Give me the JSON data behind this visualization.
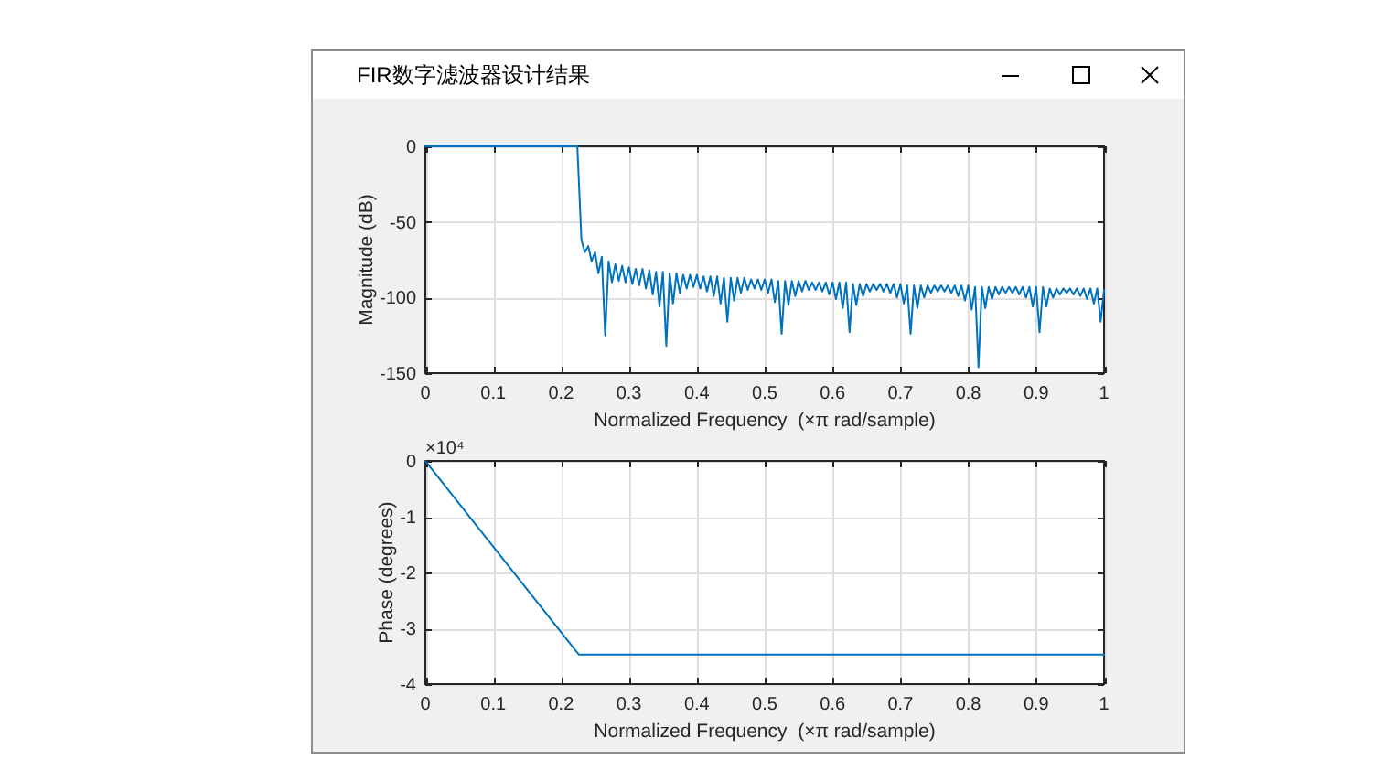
{
  "chart_data": [
    {
      "type": "line",
      "title": "FIR数字滤波器设计结果",
      "xlabel": "Normalized Frequency  (×π rad/sample)",
      "ylabel": "Magnitude (dB)",
      "xlim": [
        0,
        1
      ],
      "ylim": [
        -150,
        0
      ],
      "xticks": [
        0,
        0.1,
        0.2,
        0.3,
        0.4,
        0.5,
        0.6,
        0.7,
        0.8,
        0.9,
        1
      ],
      "yticks": [
        -150,
        -100,
        -50,
        0
      ],
      "grid": true,
      "series": [
        {
          "color": "#0072bd",
          "x": [
            0,
            0.224,
            0.23,
            0.235,
            0.24,
            0.245,
            0.25,
            0.255,
            0.26,
            0.265,
            0.27,
            0.275,
            0.28,
            0.285,
            0.29,
            0.295,
            0.3,
            0.305,
            0.31,
            0.315,
            0.32,
            0.325,
            0.33,
            0.335,
            0.34,
            0.345,
            0.35,
            0.355,
            0.36,
            0.365,
            0.37,
            0.375,
            0.38,
            0.385,
            0.39,
            0.395,
            0.4,
            0.405,
            0.41,
            0.415,
            0.42,
            0.425,
            0.43,
            0.435,
            0.44,
            0.445,
            0.45,
            0.455,
            0.46,
            0.465,
            0.47,
            0.475,
            0.48,
            0.485,
            0.49,
            0.495,
            0.5,
            0.505,
            0.51,
            0.515,
            0.52,
            0.525,
            0.53,
            0.535,
            0.54,
            0.545,
            0.55,
            0.555,
            0.56,
            0.565,
            0.57,
            0.575,
            0.58,
            0.585,
            0.59,
            0.595,
            0.6,
            0.605,
            0.61,
            0.615,
            0.62,
            0.625,
            0.63,
            0.635,
            0.64,
            0.645,
            0.65,
            0.655,
            0.66,
            0.665,
            0.67,
            0.675,
            0.68,
            0.685,
            0.69,
            0.695,
            0.7,
            0.705,
            0.71,
            0.715,
            0.72,
            0.725,
            0.73,
            0.735,
            0.74,
            0.745,
            0.75,
            0.755,
            0.76,
            0.765,
            0.77,
            0.775,
            0.78,
            0.785,
            0.79,
            0.795,
            0.8,
            0.805,
            0.81,
            0.815,
            0.82,
            0.825,
            0.83,
            0.835,
            0.84,
            0.845,
            0.85,
            0.855,
            0.86,
            0.865,
            0.87,
            0.875,
            0.88,
            0.885,
            0.89,
            0.895,
            0.9,
            0.905,
            0.91,
            0.915,
            0.92,
            0.925,
            0.93,
            0.935,
            0.94,
            0.945,
            0.95,
            0.955,
            0.96,
            0.965,
            0.97,
            0.975,
            0.98,
            0.985,
            0.99,
            0.995,
            1
          ],
          "values": [
            0,
            0,
            -62,
            -70,
            -66,
            -76,
            -70,
            -84,
            -73,
            -125,
            -76,
            -90,
            -78,
            -89,
            -79,
            -90,
            -80,
            -91,
            -81,
            -92,
            -81,
            -94,
            -82,
            -98,
            -83,
            -106,
            -83,
            -132,
            -84,
            -104,
            -84,
            -97,
            -85,
            -94,
            -85,
            -93,
            -85,
            -94,
            -86,
            -96,
            -86,
            -99,
            -86,
            -104,
            -87,
            -116,
            -87,
            -102,
            -87,
            -97,
            -87,
            -95,
            -88,
            -94,
            -88,
            -95,
            -88,
            -97,
            -88,
            -103,
            -89,
            -124,
            -89,
            -105,
            -89,
            -99,
            -89,
            -96,
            -89,
            -95,
            -90,
            -95,
            -90,
            -96,
            -90,
            -98,
            -90,
            -101,
            -90,
            -107,
            -90,
            -123,
            -91,
            -105,
            -91,
            -99,
            -91,
            -96,
            -91,
            -95,
            -91,
            -96,
            -91,
            -97,
            -91,
            -100,
            -91,
            -104,
            -92,
            -124,
            -92,
            -107,
            -92,
            -100,
            -92,
            -97,
            -92,
            -96,
            -92,
            -96,
            -92,
            -97,
            -92,
            -99,
            -92,
            -102,
            -92,
            -108,
            -93,
            -146,
            -93,
            -107,
            -93,
            -101,
            -93,
            -98,
            -93,
            -97,
            -93,
            -97,
            -93,
            -98,
            -93,
            -100,
            -93,
            -106,
            -93,
            -123,
            -93,
            -106,
            -94,
            -100,
            -94,
            -98,
            -94,
            -97,
            -94,
            -98,
            -94,
            -99,
            -94,
            -101,
            -94,
            -104,
            -94,
            -116,
            -95
          ]
        }
      ]
    },
    {
      "type": "line",
      "xlabel": "Normalized Frequency  (×π rad/sample)",
      "ylabel": "Phase (degrees)",
      "annotations": [
        "×10⁴"
      ],
      "xlim": [
        0,
        1
      ],
      "ylim": [
        -4,
        0
      ],
      "xticks": [
        0,
        0.1,
        0.2,
        0.3,
        0.4,
        0.5,
        0.6,
        0.7,
        0.8,
        0.9,
        1
      ],
      "yticks": [
        -4,
        -3,
        -2,
        -1,
        0
      ],
      "grid": true,
      "series": [
        {
          "color": "#0072bd",
          "x": [
            0,
            0.226,
            1
          ],
          "values": [
            0,
            -3.47,
            -3.47
          ]
        }
      ]
    }
  ]
}
